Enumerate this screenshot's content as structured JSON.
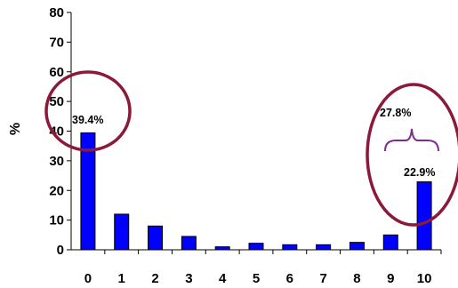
{
  "chart_data": {
    "type": "bar",
    "categories": [
      "0",
      "1",
      "2",
      "3",
      "4",
      "5",
      "6",
      "7",
      "8",
      "9",
      "10"
    ],
    "values": [
      39.4,
      12,
      8,
      4.5,
      1,
      2.2,
      1.7,
      1.7,
      2.5,
      5,
      22.9
    ],
    "title": "",
    "xlabel": "",
    "ylabel": "%",
    "ylim": [
      0,
      80
    ],
    "yticks": [
      "0",
      "10",
      "20",
      "30",
      "40",
      "50",
      "60",
      "70",
      "80"
    ],
    "grid": false,
    "bar_color": "#0000ff",
    "annotations": {
      "left_label": "39.4%",
      "right_bar_label": "22.9%",
      "right_group_label": "27.8%",
      "circle_color": "#8b1a3a",
      "brace_color": "#7b2f8c"
    }
  }
}
